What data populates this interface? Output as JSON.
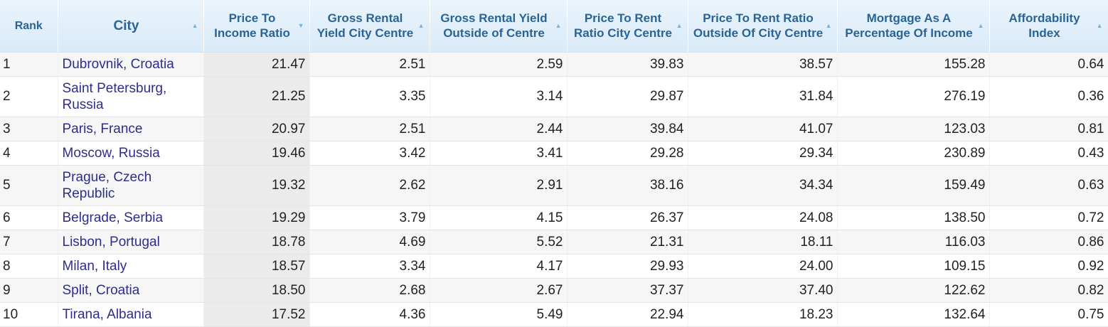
{
  "table": {
    "headers": [
      {
        "label": "Rank",
        "sortable": false
      },
      {
        "label": "City",
        "sortable": true
      },
      {
        "label": "Price To Income Ratio",
        "sortable": true
      },
      {
        "label": "Gross Rental Yield City Centre",
        "sortable": true
      },
      {
        "label": "Gross Rental Yield Outside of Centre",
        "sortable": true
      },
      {
        "label": "Price To Rent Ratio City Centre",
        "sortable": true
      },
      {
        "label": "Price To Rent Ratio Outside Of City Centre",
        "sortable": true
      },
      {
        "label": "Mortgage As A Percentage Of Income",
        "sortable": true
      },
      {
        "label": "Affordability Index",
        "sortable": true
      }
    ],
    "rows": [
      [
        "1",
        "Dubrovnik, Croatia",
        "21.47",
        "2.51",
        "2.59",
        "39.83",
        "38.57",
        "155.28",
        "0.64"
      ],
      [
        "2",
        "Saint Petersburg, Russia",
        "21.25",
        "3.35",
        "3.14",
        "29.87",
        "31.84",
        "276.19",
        "0.36"
      ],
      [
        "3",
        "Paris, France",
        "20.97",
        "2.51",
        "2.44",
        "39.84",
        "41.07",
        "123.03",
        "0.81"
      ],
      [
        "4",
        "Moscow, Russia",
        "19.46",
        "3.42",
        "3.41",
        "29.28",
        "29.34",
        "230.89",
        "0.43"
      ],
      [
        "5",
        "Prague, Czech Republic",
        "19.32",
        "2.62",
        "2.91",
        "38.16",
        "34.34",
        "159.49",
        "0.63"
      ],
      [
        "6",
        "Belgrade, Serbia",
        "19.29",
        "3.79",
        "4.15",
        "26.37",
        "24.08",
        "138.50",
        "0.72"
      ],
      [
        "7",
        "Lisbon, Portugal",
        "18.78",
        "4.69",
        "5.52",
        "21.31",
        "18.11",
        "116.03",
        "0.86"
      ],
      [
        "8",
        "Milan, Italy",
        "18.57",
        "3.34",
        "4.17",
        "29.93",
        "24.00",
        "109.15",
        "0.92"
      ],
      [
        "9",
        "Split, Croatia",
        "18.50",
        "2.68",
        "2.67",
        "37.37",
        "37.40",
        "122.62",
        "0.82"
      ],
      [
        "10",
        "Tirana, Albania",
        "17.52",
        "4.36",
        "5.49",
        "22.94",
        "18.23",
        "132.64",
        "0.75"
      ]
    ]
  },
  "icons": {
    "sort_asc": "▲",
    "sort_desc": "▼"
  }
}
